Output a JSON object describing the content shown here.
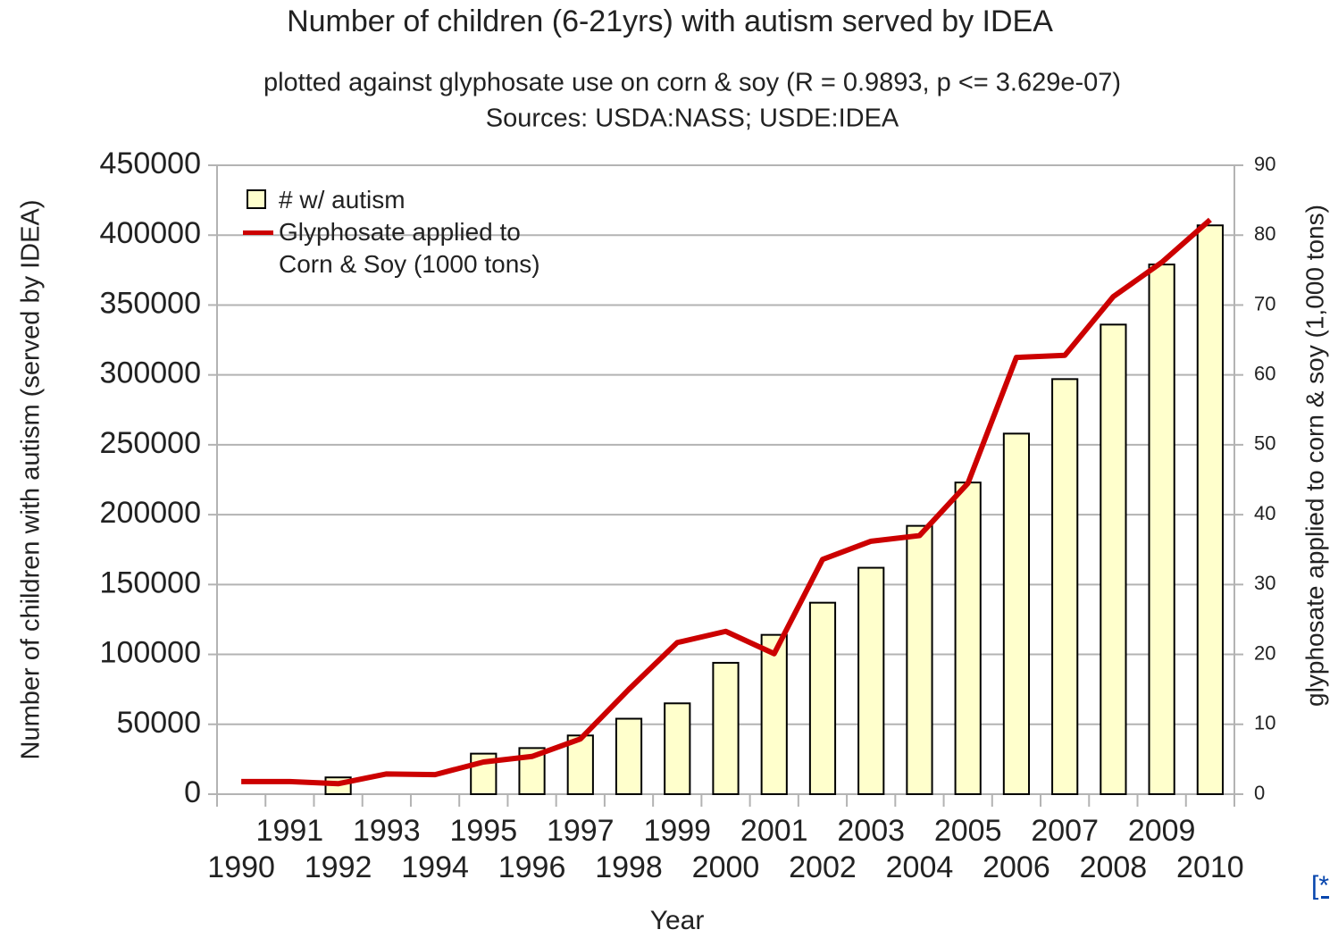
{
  "chart_data": {
    "type": "bar",
    "title": "Number of children (6-21yrs) with autism served by IDEA",
    "subtitle": "plotted against glyphosate use on corn & soy (R = 0.9893, p <= 3.629e-07)",
    "source": "Sources: USDA:NASS; USDE:IDEA",
    "x_label": "Year",
    "y_label": "Number of children with autism (served by IDEA)",
    "y2_label": "glyphosate applied to corn & soy (1,000 tons)",
    "categories": [
      "1990",
      "1991",
      "1992",
      "1993",
      "1994",
      "1995",
      "1996",
      "1997",
      "1998",
      "1999",
      "2000",
      "2001",
      "2002",
      "2003",
      "2004",
      "2005",
      "2006",
      "2007",
      "2008",
      "2009",
      "2010"
    ],
    "series": [
      {
        "name": "# w/ autism",
        "type": "bar",
        "color": "#ffffcc",
        "values": [
          null,
          null,
          12000,
          null,
          null,
          29000,
          33000,
          42000,
          54000,
          65000,
          94000,
          114000,
          137000,
          162000,
          192000,
          223000,
          258000,
          297000,
          336000,
          379000,
          407000
        ]
      },
      {
        "name": "Glyphosate applied to Corn & Soy (1000 tons)",
        "type": "line",
        "axis": "y2",
        "color": "#cc0000",
        "values": [
          1.8,
          1.8,
          1.5,
          2.9,
          2.8,
          4.6,
          5.4,
          7.9,
          15,
          21.7,
          23.3,
          20.1,
          33.6,
          36.2,
          37,
          44.5,
          62.5,
          62.8,
          71.2,
          76.1,
          82.2
        ]
      }
    ],
    "ylim": [
      0,
      450000
    ],
    "yticks": [
      0,
      50000,
      100000,
      150000,
      200000,
      250000,
      300000,
      350000,
      400000,
      450000
    ],
    "y2lim": [
      0,
      90
    ],
    "y2ticks": [
      0,
      10,
      20,
      30,
      40,
      50,
      60,
      70,
      80,
      90
    ],
    "grid": true,
    "legend": "top-left",
    "footnote_link": "[*"
  }
}
